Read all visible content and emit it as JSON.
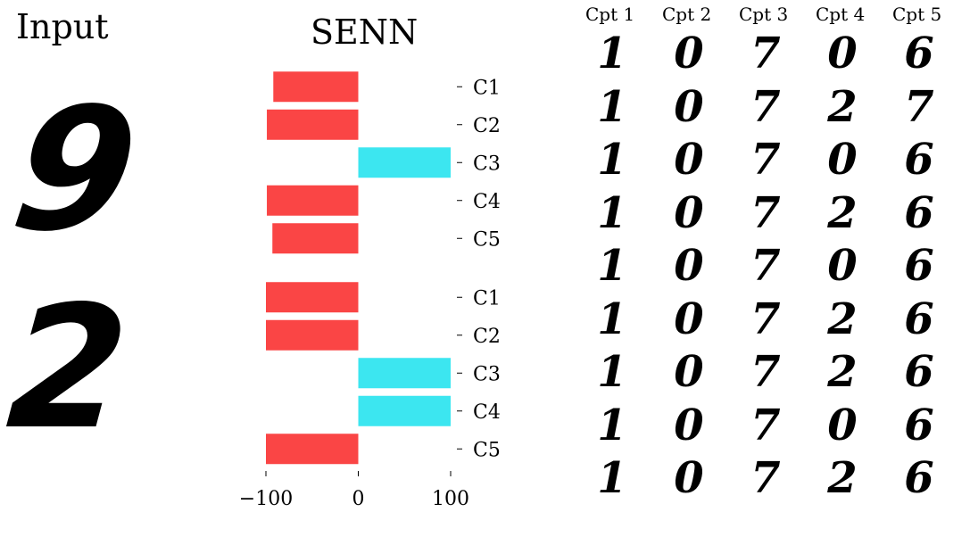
{
  "input_title": "Input",
  "input_digits": [
    "9",
    "2"
  ],
  "chart_data": {
    "type": "bar",
    "orientation": "horizontal",
    "title": "SENN",
    "xlim": [
      -100,
      100
    ],
    "xticks": [
      -100,
      0,
      100
    ],
    "xtick_labels": [
      "−100",
      "0",
      "100"
    ],
    "groups": [
      {
        "categories": [
          "C1",
          "C2",
          "C3",
          "C4",
          "C5"
        ],
        "values": [
          -92,
          -99,
          100,
          -99,
          -93
        ]
      },
      {
        "categories": [
          "C1",
          "C2",
          "C3",
          "C4",
          "C5"
        ],
        "values": [
          -100,
          -100,
          100,
          100,
          -100
        ]
      }
    ],
    "colors": {
      "negative": "#fa4545",
      "positive": "#3ce6f0"
    },
    "grid": false,
    "legend": "none"
  },
  "concepts": {
    "headers": [
      "Cpt 1",
      "Cpt 2",
      "Cpt 3",
      "Cpt 4",
      "Cpt 5"
    ],
    "rows": [
      [
        "1",
        "0",
        "7",
        "0",
        "6"
      ],
      [
        "1",
        "0",
        "7",
        "2",
        "7"
      ],
      [
        "1",
        "0",
        "7",
        "0",
        "6"
      ],
      [
        "1",
        "0",
        "7",
        "2",
        "6"
      ],
      [
        "1",
        "0",
        "7",
        "0",
        "6"
      ],
      [
        "1",
        "0",
        "7",
        "2",
        "6"
      ],
      [
        "1",
        "0",
        "7",
        "2",
        "6"
      ],
      [
        "1",
        "0",
        "7",
        "0",
        "6"
      ],
      [
        "1",
        "0",
        "7",
        "2",
        "6"
      ]
    ]
  }
}
